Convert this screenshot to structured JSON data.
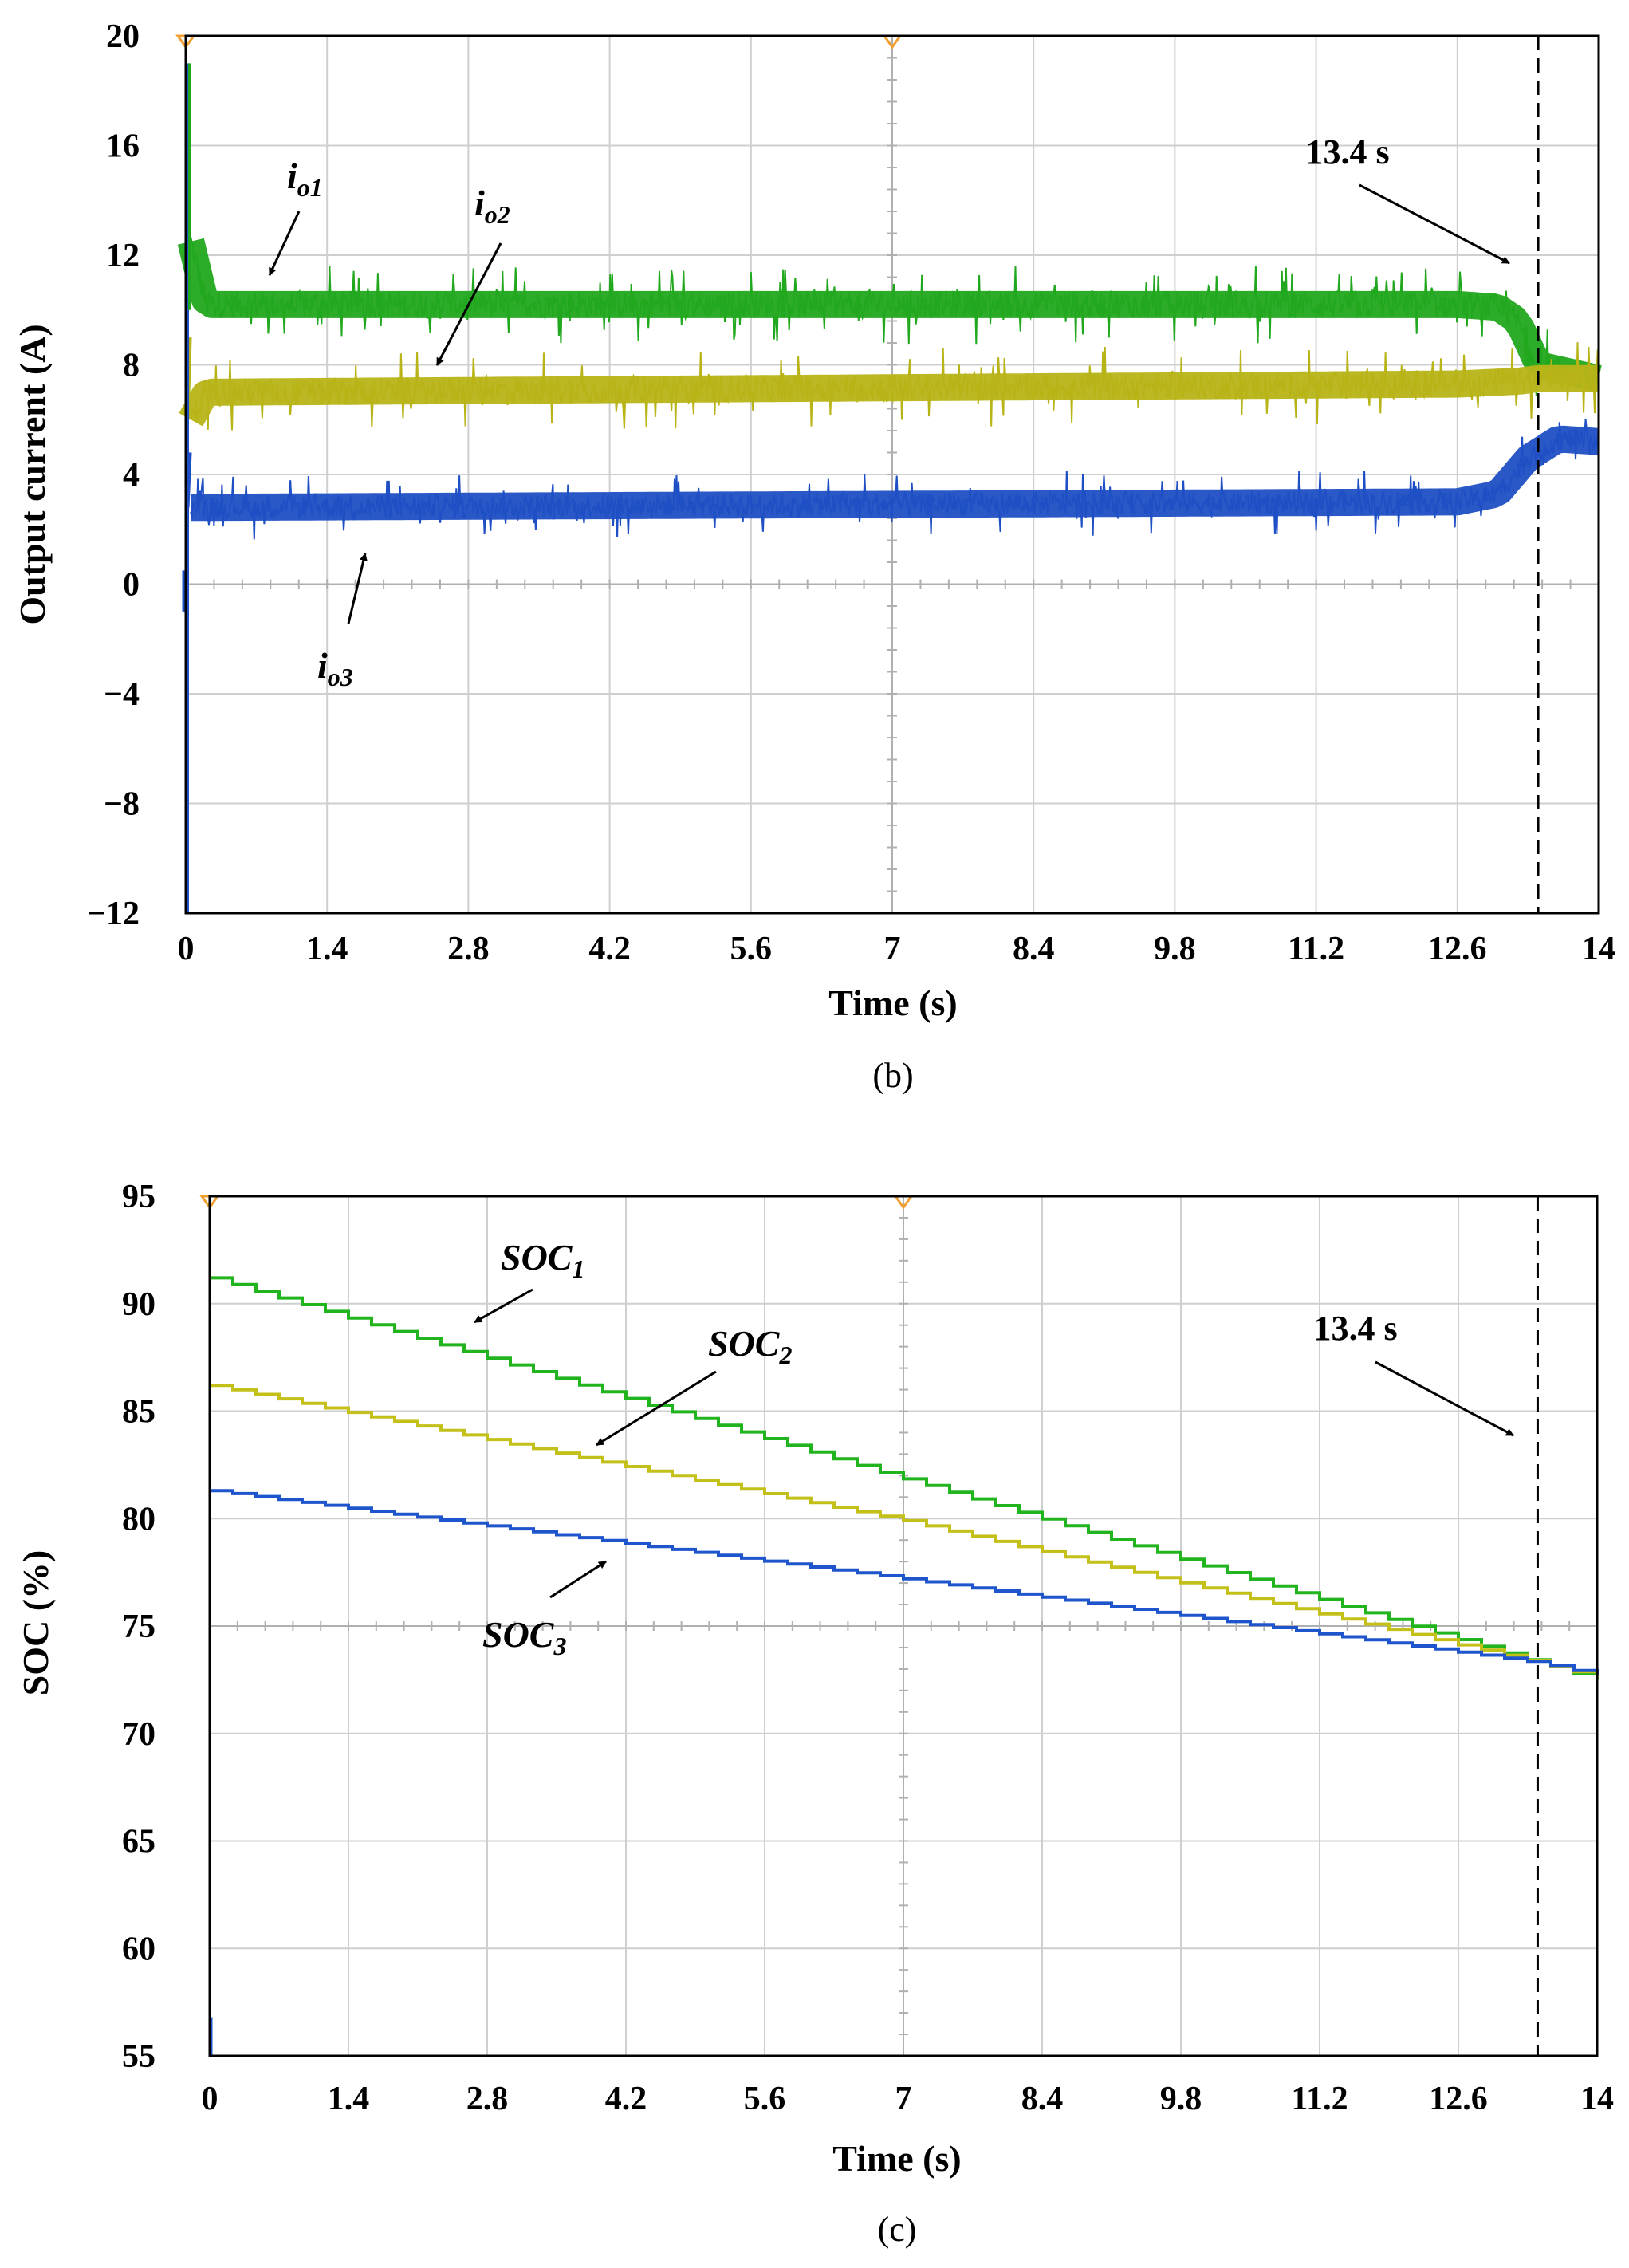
{
  "chart_data": [
    {
      "id": "b",
      "type": "line",
      "caption": "(b)",
      "xlabel": "Time (s)",
      "ylabel": "Output current (A)",
      "xlim": [
        0,
        14
      ],
      "ylim": [
        -12,
        20
      ],
      "xticks": [
        "0",
        "1.4",
        "2.8",
        "4.2",
        "5.6",
        "7",
        "8.4",
        "9.8",
        "11.2",
        "12.6",
        "14"
      ],
      "yticks": [
        "20",
        "16",
        "12",
        "8",
        "4",
        "0",
        "−4",
        "−8",
        "−12"
      ],
      "grid": true,
      "event_time": 13.4,
      "event_label": "13.4 s",
      "colors": {
        "io1": "#22a81e",
        "io2": "#b8b418",
        "io3": "#1f4fc4",
        "marker": "#f0a030"
      },
      "series": [
        {
          "key": "io1",
          "name_main": "i",
          "name_sub": "o1",
          "x": [
            0,
            0.05,
            0.2,
            12.6,
            13.0,
            13.2,
            13.4,
            14
          ],
          "values": [
            0,
            12.5,
            10.2,
            10.2,
            10.1,
            9.6,
            8.0,
            7.5
          ],
          "noise": 0.9
        },
        {
          "key": "io2",
          "name_main": "i",
          "name_sub": "o2",
          "x": [
            0,
            0.05,
            0.2,
            12.6,
            13.2,
            13.4,
            14
          ],
          "values": [
            0,
            6.0,
            7.0,
            7.3,
            7.4,
            7.5,
            7.5
          ],
          "noise": 0.9
        },
        {
          "key": "io3",
          "name_main": "i",
          "name_sub": "o3",
          "x": [
            0,
            0.05,
            0.2,
            12.6,
            13.0,
            13.3,
            13.6,
            14
          ],
          "values": [
            0,
            2.8,
            2.8,
            3.0,
            3.3,
            4.6,
            5.3,
            5.2
          ],
          "noise": 0.75
        }
      ],
      "annotations": [
        {
          "series": "io1",
          "label_main": "i",
          "label_sub": "o1"
        },
        {
          "series": "io2",
          "label_main": "i",
          "label_sub": "o2"
        },
        {
          "series": "io3",
          "label_main": "i",
          "label_sub": "o3"
        }
      ]
    },
    {
      "id": "c",
      "type": "line",
      "caption": "(c)",
      "xlabel": "Time (s)",
      "ylabel": "SOC (%)",
      "xlim": [
        0,
        14
      ],
      "ylim": [
        55,
        95
      ],
      "xticks": [
        "0",
        "1.4",
        "2.8",
        "4.2",
        "5.6",
        "7",
        "8.4",
        "9.8",
        "11.2",
        "12.6",
        "14"
      ],
      "yticks": [
        "95",
        "90",
        "85",
        "80",
        "75",
        "70",
        "65",
        "60",
        "55"
      ],
      "grid": true,
      "event_time": 13.4,
      "event_label": "13.4 s",
      "colors": {
        "soc1": "#22b41e",
        "soc2": "#c4c01a",
        "soc3": "#1f55cc",
        "marker": "#f0a030"
      },
      "series": [
        {
          "key": "soc1",
          "name_main": "SOC",
          "name_sub": "1",
          "x": [
            0,
            13.4,
            14
          ],
          "values": [
            91.2,
            73.3,
            72.5
          ]
        },
        {
          "key": "soc2",
          "name_main": "SOC",
          "name_sub": "2",
          "x": [
            0,
            7,
            13.4,
            14
          ],
          "values": [
            86.2,
            79.9,
            73.3,
            72.6
          ]
        },
        {
          "key": "soc3",
          "name_main": "SOC",
          "name_sub": "3",
          "x": [
            0,
            7,
            13.4,
            14
          ],
          "values": [
            81.3,
            77.2,
            73.3,
            72.7
          ]
        }
      ],
      "annotations": [
        {
          "series": "soc1",
          "label_main": "SOC",
          "label_sub": "1"
        },
        {
          "series": "soc2",
          "label_main": "SOC",
          "label_sub": "2"
        },
        {
          "series": "soc3",
          "label_main": "SOC",
          "label_sub": "3"
        }
      ]
    }
  ]
}
